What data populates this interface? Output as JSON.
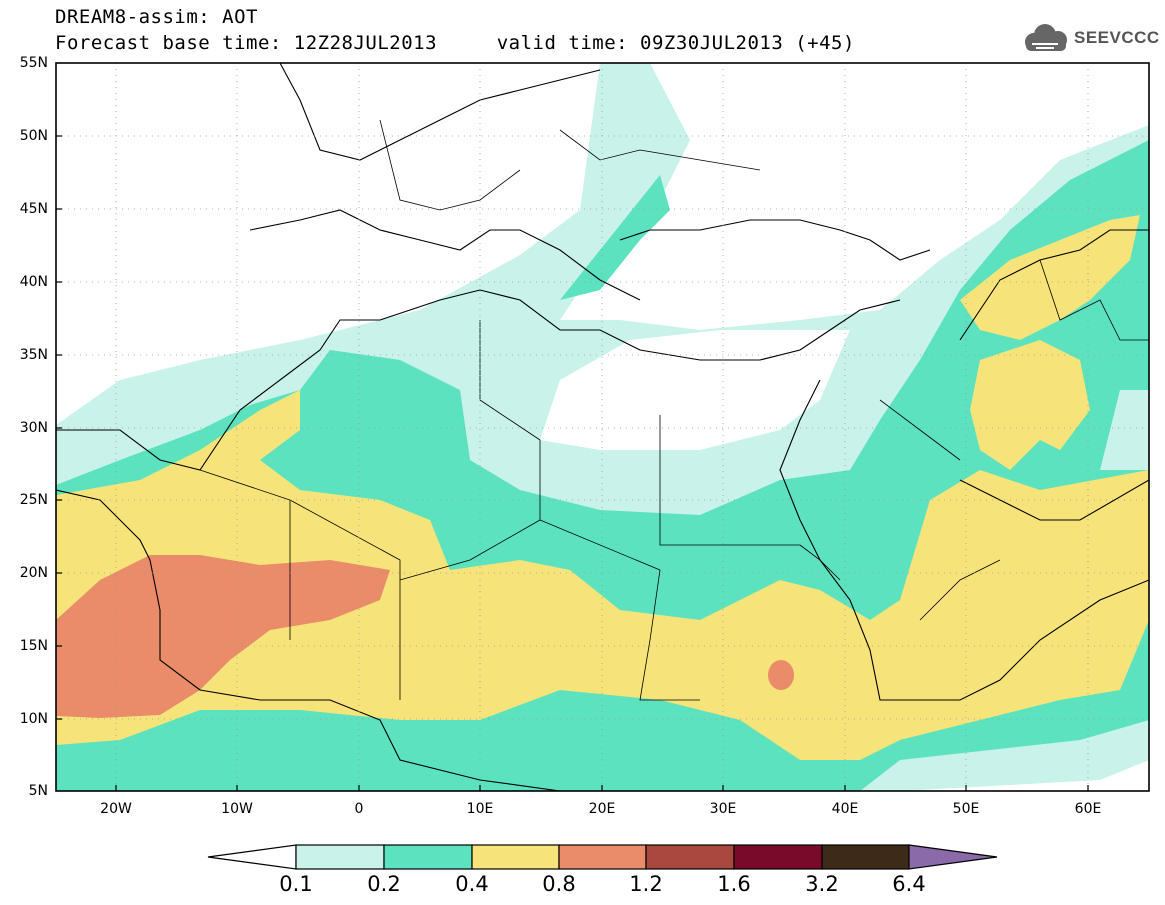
{
  "header": {
    "title_line1": "DREAM8-assim: AOT",
    "title_line2": "Forecast base time: 12Z28JUL2013     valid time: 09Z30JUL2013 (+45)"
  },
  "logo": {
    "text": "SEEVCCC",
    "icon": "cloud-logo-icon"
  },
  "map": {
    "variable": "AOT",
    "lat_labels": [
      "55N",
      "50N",
      "45N",
      "40N",
      "35N",
      "30N",
      "25N",
      "20N",
      "15N",
      "10N",
      "5N"
    ],
    "lon_labels": [
      "20W",
      "10W",
      "0",
      "10E",
      "20E",
      "30E",
      "40E",
      "50E",
      "60E"
    ],
    "lat_range": [
      5,
      55
    ],
    "lon_range": [
      -25,
      65
    ],
    "grid": "dotted"
  },
  "colorbar": {
    "levels": [
      "0.1",
      "0.2",
      "0.4",
      "0.8",
      "1.2",
      "1.6",
      "3.2",
      "6.4"
    ],
    "colors": [
      "#ffffff",
      "#c8f2ea",
      "#5ce2be",
      "#f6e47a",
      "#ea8b6a",
      "#a8483e",
      "#7a0a2a",
      "#3e2a18",
      "#8a6aa8"
    ]
  },
  "colors": {
    "lt01_02": "#c8f2ea",
    "lt02_04": "#5ce2be",
    "lt04_08": "#f6e47a",
    "lt08_12": "#ea8b6a"
  }
}
